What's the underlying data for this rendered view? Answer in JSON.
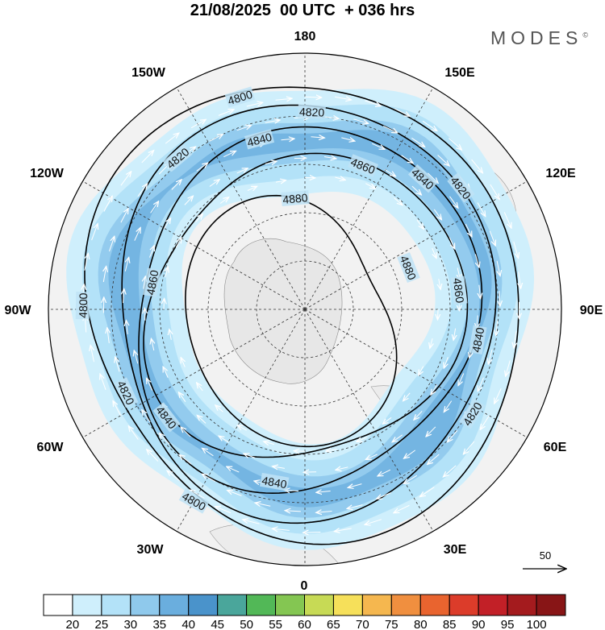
{
  "header": {
    "title": "21/08/2025  00 UTC  + 036 hrs",
    "brand": "MODES",
    "brand_mark": "©"
  },
  "map": {
    "projection": "polar-stereographic",
    "hemisphere": "south",
    "longitude_labels": {
      "top": "180",
      "top_left": "150W",
      "top_right": "150E",
      "upper_left": "120W",
      "upper_right": "120E",
      "left": "90W",
      "right": "90E",
      "lower_left": "60W",
      "lower_right": "60E",
      "bottom_left": "30W",
      "bottom_right": "30E",
      "bottom": "0"
    },
    "contour_levels": [
      "4800",
      "4820",
      "4840",
      "4860",
      "4880"
    ],
    "contour_labels": [
      {
        "text": "4800",
        "lon": -163
      },
      {
        "text": "4820",
        "lon": 178
      },
      {
        "text": "4840",
        "lon": -165
      },
      {
        "text": "4860",
        "lon": 158
      },
      {
        "text": "4880",
        "lon": -175
      },
      {
        "text": "4840",
        "lon": 138
      },
      {
        "text": "4820",
        "lon": 128
      },
      {
        "text": "4820",
        "lon": -140
      },
      {
        "text": "4860",
        "lon": -100
      },
      {
        "text": "4880",
        "lon": 112
      },
      {
        "text": "4860",
        "lon": 97
      },
      {
        "text": "4840",
        "lon": 80
      },
      {
        "text": "4800",
        "lon": -91
      },
      {
        "text": "4820",
        "lon": -65
      },
      {
        "text": "4840",
        "lon": -52
      },
      {
        "text": "4820",
        "lon": 58
      },
      {
        "text": "4840",
        "lon": -10
      },
      {
        "text": "4800",
        "lon": -30
      }
    ],
    "reference_vector": "50",
    "wind_color_scale": "#cfe9fa"
  },
  "colorbar": {
    "labels": [
      "20",
      "25",
      "30",
      "35",
      "40",
      "45",
      "50",
      "55",
      "60",
      "65",
      "70",
      "75",
      "80",
      "85",
      "90",
      "95",
      "100"
    ],
    "colors": [
      "#ffffff",
      "#cfeffc",
      "#b3e2f8",
      "#8fc9ec",
      "#6aaede",
      "#4a93cb",
      "#4aa69b",
      "#52b857",
      "#84c652",
      "#c7da55",
      "#f6e05a",
      "#f5b74f",
      "#f08f3f",
      "#e9642f",
      "#dc3c2a",
      "#c22027",
      "#a41b1e",
      "#881516"
    ]
  }
}
